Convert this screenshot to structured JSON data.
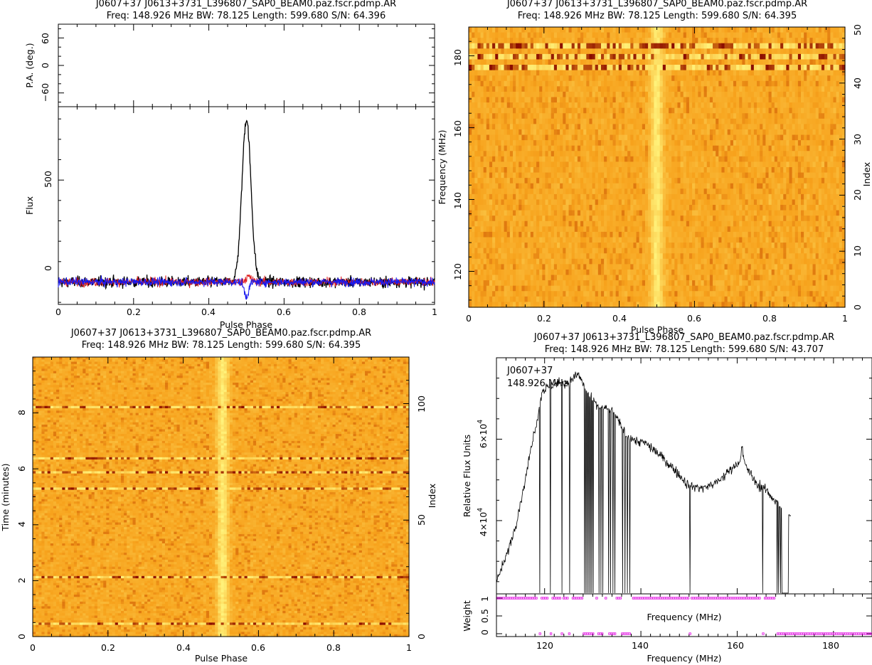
{
  "colors": {
    "heat_base": "#f7a21c",
    "heat_bright": "#fff27a",
    "heat_dark": "#8a0b00",
    "total_intensity": "#000000",
    "linear_pol": "#e02020",
    "circular_pol": "#1a1aee",
    "weight_marker": "#e000e0"
  },
  "chart_data": [
    {
      "id": "profile",
      "type": "line",
      "title": "J0607+37  J0613+3731_L396807_SAP0_BEAM0.paz.fscr.pdmp.AR",
      "subtitle": "Freq: 148.926 MHz BW: 78.125 Length: 599.680 S/N: 64.396",
      "xlabel": "Pulse Phase",
      "xlim": [
        0,
        1
      ],
      "xticks": [
        "0",
        "0.2",
        "0.4",
        "0.6",
        "0.8",
        "1"
      ],
      "pa_panel": {
        "ylabel": "P.A. (deg.)",
        "ylim": [
          -90,
          90
        ],
        "yticks": [
          "60",
          "0",
          "−60"
        ]
      },
      "flux_panel": {
        "ylabel": "Flux",
        "ylim": [
          -110,
          860
        ],
        "yticks": [
          "0",
          "500"
        ],
        "series": [
          {
            "color": "#000000",
            "noise_sigma": 13,
            "peak": {
              "phase": 0.5,
              "height": 800,
              "width": 0.012
            }
          },
          {
            "color": "#e02020",
            "noise_sigma": 10,
            "peak": {
              "phase": 0.505,
              "height": 25,
              "width": 0.008
            }
          },
          {
            "color": "#1a1aee",
            "noise_sigma": 10,
            "peak": {
              "phase": 0.5,
              "height": -70,
              "width": 0.006
            }
          }
        ]
      }
    },
    {
      "id": "phase-frequency",
      "type": "heatmap",
      "title": "J0607+37  J0613+3731_L396807_SAP0_BEAM0.paz.fscr.pdmp.AR",
      "subtitle": "Freq: 148.926 MHz BW: 78.125 Length: 599.680 S/N: 64.395",
      "xlabel": "Pulse Phase",
      "ylabel": "Frequency (MHz)",
      "y2label": "Index",
      "xlim": [
        0,
        1
      ],
      "ylim": [
        110,
        188
      ],
      "y2lim": [
        0,
        50
      ],
      "xticks": [
        "0",
        "0.2",
        "0.4",
        "0.6",
        "0.8",
        "1"
      ],
      "yticks": [
        "120",
        "140",
        "160",
        "180"
      ],
      "y2ticks": [
        "0",
        "10",
        "20",
        "30",
        "40",
        "50"
      ],
      "rows": 52,
      "pulse": {
        "phase": 0.5,
        "width": 0.012
      },
      "rfi_channels_mhz": [
        177.5,
        179.5,
        180.5,
        182.5,
        183.5
      ]
    },
    {
      "id": "phase-time",
      "type": "heatmap",
      "title": "J0607+37  J0613+3731_L396807_SAP0_BEAM0.paz.fscr.pdmp.AR",
      "subtitle": "Freq: 148.926 MHz BW: 78.125 Length: 599.680 S/N: 64.395",
      "xlabel": "Pulse Phase",
      "ylabel": "Time (minutes)",
      "y2label": "Index",
      "xlim": [
        0,
        1
      ],
      "ylim": [
        0,
        10
      ],
      "y2lim": [
        0,
        120
      ],
      "xticks": [
        "0",
        "0.2",
        "0.4",
        "0.6",
        "0.8",
        "1"
      ],
      "yticks": [
        "0",
        "2",
        "4",
        "6",
        "8"
      ],
      "y2ticks": [
        "0",
        "50",
        "100"
      ],
      "rows": 120,
      "pulse": {
        "phase": 0.505,
        "width": 0.011
      },
      "rfi_times_min": [
        0.45,
        2.15,
        5.3,
        5.85,
        6.35,
        8.25
      ]
    },
    {
      "id": "bandpass",
      "type": "line",
      "title": "J0607+37  J0613+3731_L396807_SAP0_BEAM0.paz.fscr.pdmp.AR",
      "subtitle": "Freq: 148.926 MHz BW: 78.125 Length: 599.680 S/N: 43.707",
      "legend": [
        "J0607+37",
        "148.926 MHz"
      ],
      "xlabel": "Frequency (MHz)",
      "ylabel": "Relative Flux Units",
      "weight_ylabel": "Weight",
      "weight_xlabel": "Frequency (MHz)",
      "xlim": [
        110,
        188
      ],
      "ylim": [
        22000,
        80000
      ],
      "xticks": [
        "120",
        "140",
        "160",
        "180"
      ],
      "ytick_labels": [
        {
          "value": 40000,
          "base": "4×10",
          "exp": "4"
        },
        {
          "value": 60000,
          "base": "6×10",
          "exp": "4"
        }
      ],
      "weight_ylim": [
        0,
        1
      ],
      "weight_yticks": [
        "0",
        "0.5",
        "1"
      ],
      "shape": [
        [
          110,
          25000
        ],
        [
          112,
          31000
        ],
        [
          114,
          39000
        ],
        [
          116,
          50000
        ],
        [
          117.5,
          60000
        ],
        [
          118.5,
          65000
        ],
        [
          119.5,
          72000
        ],
        [
          122,
          73500
        ],
        [
          125,
          74000
        ],
        [
          127,
          76000
        ],
        [
          129,
          71000
        ],
        [
          131,
          68000
        ],
        [
          134,
          67000
        ],
        [
          136,
          63000
        ],
        [
          137,
          61000
        ],
        [
          139,
          59500
        ],
        [
          141,
          59000
        ],
        [
          144,
          56000
        ],
        [
          147,
          52500
        ],
        [
          150,
          48500
        ],
        [
          153,
          48000
        ],
        [
          156,
          49500
        ],
        [
          159,
          53000
        ],
        [
          160.5,
          54500
        ],
        [
          161,
          58000
        ],
        [
          161.5,
          54000
        ],
        [
          162,
          53000
        ],
        [
          164,
          49000
        ],
        [
          166,
          47500
        ],
        [
          168.5,
          44000
        ],
        [
          170,
          42000
        ],
        [
          171,
          41000
        ]
      ],
      "zapped_mhz": [
        119,
        121.2,
        123.6,
        125.2,
        128.3,
        128.6,
        128.9,
        129.2,
        129.5,
        129.8,
        130.1,
        131.3,
        131.7,
        132.1,
        133.3,
        133.7,
        134.2,
        134.6,
        136.2,
        136.7,
        137.2,
        137.7,
        150.2,
        165.3,
        168.3,
        168.6,
        169.0
      ],
      "cutoff_mhz": 169.2,
      "zero_weight_band_mhz": [
        169.2,
        188
      ]
    }
  ]
}
